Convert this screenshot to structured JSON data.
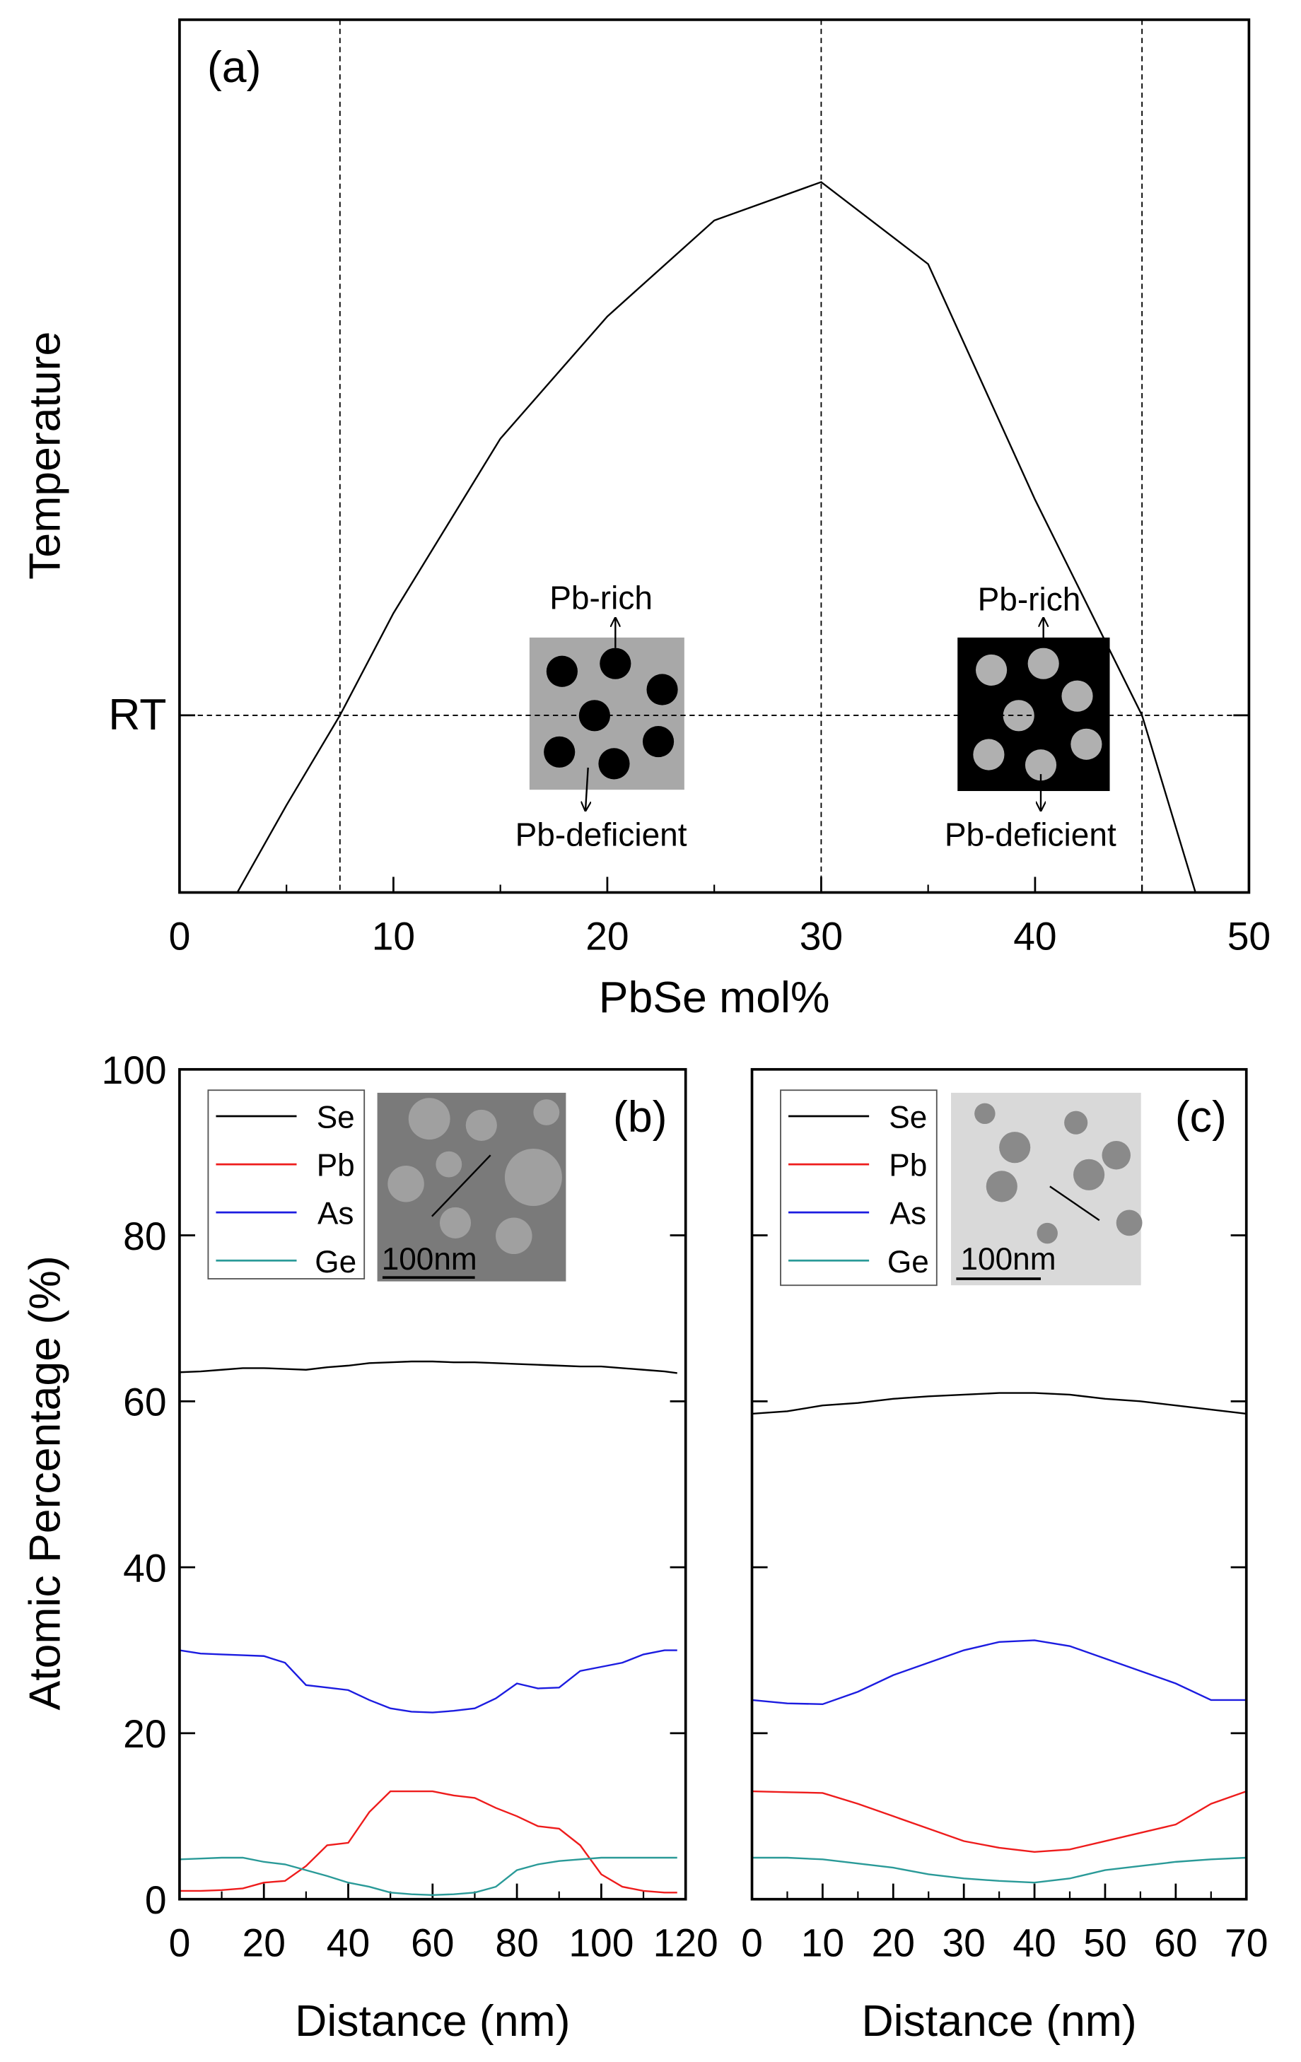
{
  "chart_data": [
    {
      "type": "line",
      "title": "(a)",
      "x_label": "PbSe mol%",
      "y_label": "Temperature",
      "xlim": [
        0,
        50
      ],
      "xticks": [
        0,
        10,
        20,
        30,
        40,
        50
      ],
      "ylim": [
        0,
        100
      ],
      "yticks": [
        {
          "value": 20.3,
          "label": "RT"
        }
      ],
      "vlines": [
        7.5,
        30,
        45
      ],
      "x": [
        2.7,
        5,
        7.5,
        10,
        15,
        20,
        25,
        30,
        35,
        40,
        45,
        47.5
      ],
      "series": [
        {
          "color": "#000000",
          "values": [
            0,
            10,
            20.3,
            32,
            52,
            66,
            77,
            81.4,
            72,
            45,
            20.3,
            0
          ]
        }
      ],
      "annotations": [
        "Pb-rich",
        "Pb-deficient",
        "Pb-rich",
        "Pb-deficient"
      ]
    },
    {
      "type": "line",
      "title": "(b)",
      "x_label": "Distance (nm)",
      "y_label": "Atomic Percentage (%)",
      "inset_label": "100nm",
      "xlim": [
        0,
        120
      ],
      "xticks": [
        0,
        20,
        40,
        60,
        80,
        100,
        120
      ],
      "ylim": [
        0,
        100
      ],
      "yticks": [
        0,
        20,
        40,
        60,
        80,
        100
      ],
      "x": [
        0,
        5,
        10,
        15,
        20,
        25,
        30,
        35,
        40,
        45,
        50,
        55,
        60,
        65,
        70,
        75,
        80,
        85,
        90,
        95,
        100,
        105,
        110,
        115,
        118
      ],
      "series": [
        {
          "name": "Se",
          "color": "#000000",
          "values": [
            63.5,
            63.6,
            63.8,
            64,
            64,
            63.9,
            63.8,
            64.1,
            64.3,
            64.6,
            64.7,
            64.8,
            64.8,
            64.7,
            64.7,
            64.6,
            64.5,
            64.4,
            64.3,
            64.2,
            64.2,
            64,
            63.8,
            63.6,
            63.4
          ]
        },
        {
          "name": "Pb",
          "color": "#ee1c1c",
          "values": [
            1,
            1,
            1.1,
            1.3,
            2,
            2.2,
            4,
            6.5,
            6.8,
            10.5,
            13,
            13,
            13,
            12.5,
            12.2,
            11,
            10,
            8.8,
            8.5,
            6.5,
            3,
            1.5,
            1,
            0.8,
            0.8
          ]
        },
        {
          "name": "As",
          "color": "#1c1ce0",
          "values": [
            30,
            29.6,
            29.5,
            29.4,
            29.3,
            28.5,
            25.8,
            25.5,
            25.2,
            24,
            23,
            22.6,
            22.5,
            22.7,
            23,
            24.2,
            26,
            25.4,
            25.5,
            27.5,
            28,
            28.5,
            29.5,
            30,
            30
          ]
        },
        {
          "name": "Ge",
          "color": "#2a9a98",
          "values": [
            4.8,
            4.9,
            5,
            5,
            4.5,
            4.2,
            3.5,
            2.8,
            2,
            1.5,
            0.8,
            0.6,
            0.5,
            0.6,
            0.8,
            1.5,
            3.5,
            4.2,
            4.6,
            4.8,
            5,
            5,
            5,
            5,
            5
          ]
        }
      ]
    },
    {
      "type": "line",
      "title": "(c)",
      "x_label": "Distance (nm)",
      "inset_label": "100nm",
      "xlim": [
        0,
        70
      ],
      "xticks": [
        0,
        10,
        20,
        30,
        40,
        50,
        60,
        70
      ],
      "ylim": [
        0,
        100
      ],
      "x": [
        0,
        5,
        10,
        15,
        20,
        25,
        30,
        35,
        40,
        45,
        50,
        55,
        60,
        65,
        70
      ],
      "series": [
        {
          "name": "Se",
          "color": "#000000",
          "values": [
            58.5,
            58.8,
            59.5,
            59.8,
            60.3,
            60.6,
            60.8,
            61,
            61,
            60.8,
            60.3,
            60,
            59.5,
            59,
            58.5
          ]
        },
        {
          "name": "Pb",
          "color": "#ee1c1c",
          "values": [
            13,
            12.9,
            12.8,
            11.5,
            10,
            8.5,
            7,
            6.2,
            5.7,
            6,
            7,
            8,
            9,
            11.5,
            13
          ]
        },
        {
          "name": "As",
          "color": "#1c1ce0",
          "values": [
            24,
            23.6,
            23.5,
            25,
            27,
            28.5,
            30,
            31,
            31.2,
            30.5,
            29,
            27.5,
            26,
            24,
            24
          ]
        },
        {
          "name": "Ge",
          "color": "#2a9a98",
          "values": [
            5,
            5,
            4.8,
            4.3,
            3.8,
            3,
            2.5,
            2.2,
            2,
            2.5,
            3.5,
            4,
            4.5,
            4.8,
            5
          ]
        }
      ]
    }
  ]
}
